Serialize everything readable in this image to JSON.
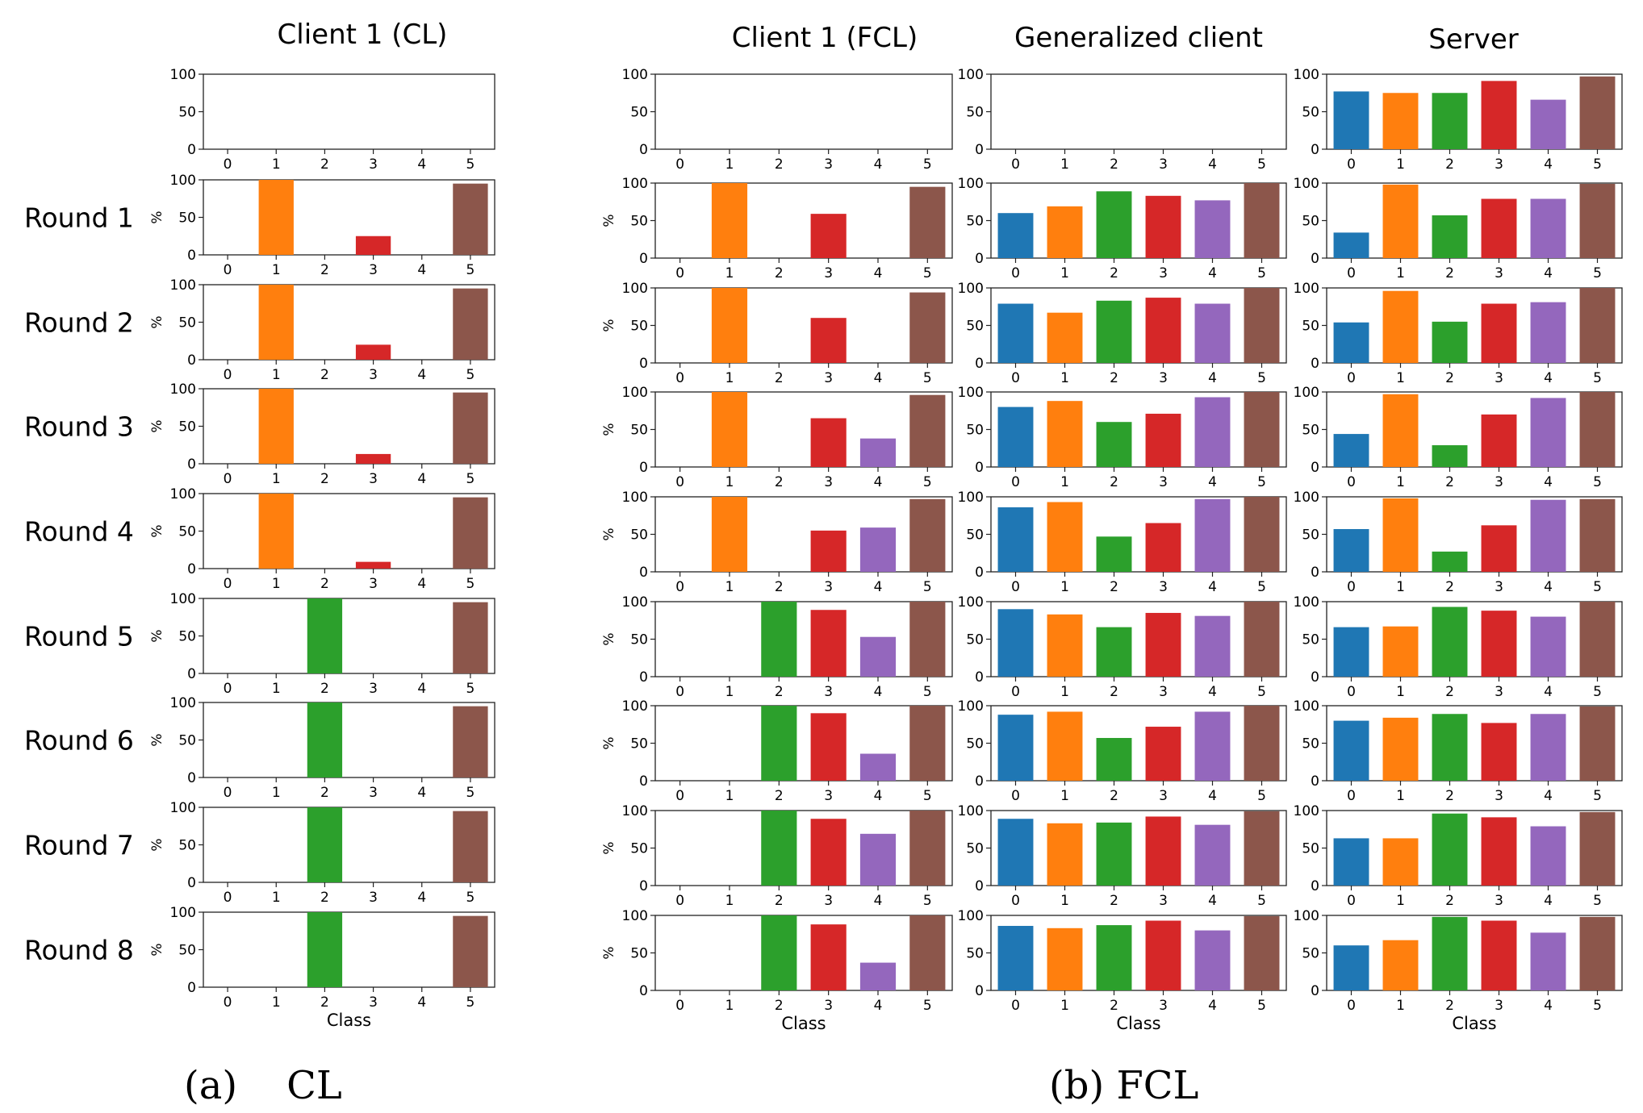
{
  "captions": {
    "a": "(a)    CL",
    "b": "(b) FCL"
  },
  "colors": [
    "#1f77b4",
    "#ff7f0e",
    "#2ca02c",
    "#d62728",
    "#9467bd",
    "#8c564b"
  ],
  "chart_data": {
    "type": "bar",
    "ylabel": "%",
    "xlabel": "Class",
    "ylim": [
      0,
      100
    ],
    "yticks": [
      "0",
      "50",
      "100"
    ],
    "categories": [
      "0",
      "1",
      "2",
      "3",
      "4",
      "5"
    ],
    "round_labels": [
      "",
      "Round 1",
      "Round 2",
      "Round 3",
      "Round 4",
      "Round 5",
      "Round 6",
      "Round 7",
      "Round 8"
    ],
    "panels": [
      {
        "title": "Client 1 (CL)",
        "rows": [
          [
            0,
            0,
            0,
            0,
            0,
            0
          ],
          [
            0,
            100,
            0,
            25,
            0,
            95
          ],
          [
            0,
            100,
            0,
            20,
            0,
            95
          ],
          [
            0,
            100,
            0,
            13,
            0,
            95
          ],
          [
            0,
            100,
            0,
            9,
            0,
            95
          ],
          [
            0,
            0,
            100,
            0,
            0,
            95
          ],
          [
            0,
            0,
            100,
            0,
            0,
            95
          ],
          [
            0,
            0,
            100,
            0,
            0,
            95
          ],
          [
            0,
            0,
            100,
            0,
            0,
            95
          ]
        ]
      },
      {
        "title": "Client 1 (FCL)",
        "rows": [
          [
            0,
            0,
            0,
            0,
            0,
            0
          ],
          [
            0,
            100,
            0,
            59,
            0,
            95
          ],
          [
            0,
            100,
            0,
            60,
            0,
            94
          ],
          [
            0,
            100,
            0,
            65,
            38,
            96
          ],
          [
            0,
            100,
            0,
            55,
            59,
            97
          ],
          [
            0,
            0,
            100,
            89,
            53,
            100
          ],
          [
            0,
            0,
            100,
            90,
            36,
            100
          ],
          [
            0,
            0,
            100,
            89,
            69,
            100
          ],
          [
            0,
            0,
            100,
            88,
            37,
            100
          ]
        ]
      },
      {
        "title": "Generalized client",
        "rows": [
          [
            0,
            0,
            0,
            0,
            0,
            0
          ],
          [
            60,
            69,
            89,
            83,
            77,
            100
          ],
          [
            79,
            67,
            83,
            87,
            79,
            100
          ],
          [
            80,
            88,
            60,
            71,
            93,
            100
          ],
          [
            86,
            93,
            47,
            65,
            97,
            100
          ],
          [
            90,
            83,
            66,
            85,
            81,
            100
          ],
          [
            88,
            92,
            57,
            72,
            92,
            100
          ],
          [
            89,
            83,
            84,
            92,
            81,
            99
          ],
          [
            86,
            83,
            87,
            93,
            80,
            99
          ]
        ]
      },
      {
        "title": "Server",
        "rows": [
          [
            77,
            75,
            75,
            91,
            66,
            97
          ],
          [
            34,
            98,
            57,
            79,
            79,
            99
          ],
          [
            54,
            96,
            55,
            79,
            81,
            100
          ],
          [
            44,
            97,
            29,
            70,
            92,
            100
          ],
          [
            57,
            98,
            27,
            62,
            96,
            97
          ],
          [
            66,
            67,
            93,
            88,
            80,
            100
          ],
          [
            80,
            84,
            89,
            77,
            89,
            99
          ],
          [
            63,
            63,
            96,
            91,
            79,
            98
          ],
          [
            60,
            67,
            98,
            93,
            77,
            98
          ]
        ]
      }
    ]
  }
}
